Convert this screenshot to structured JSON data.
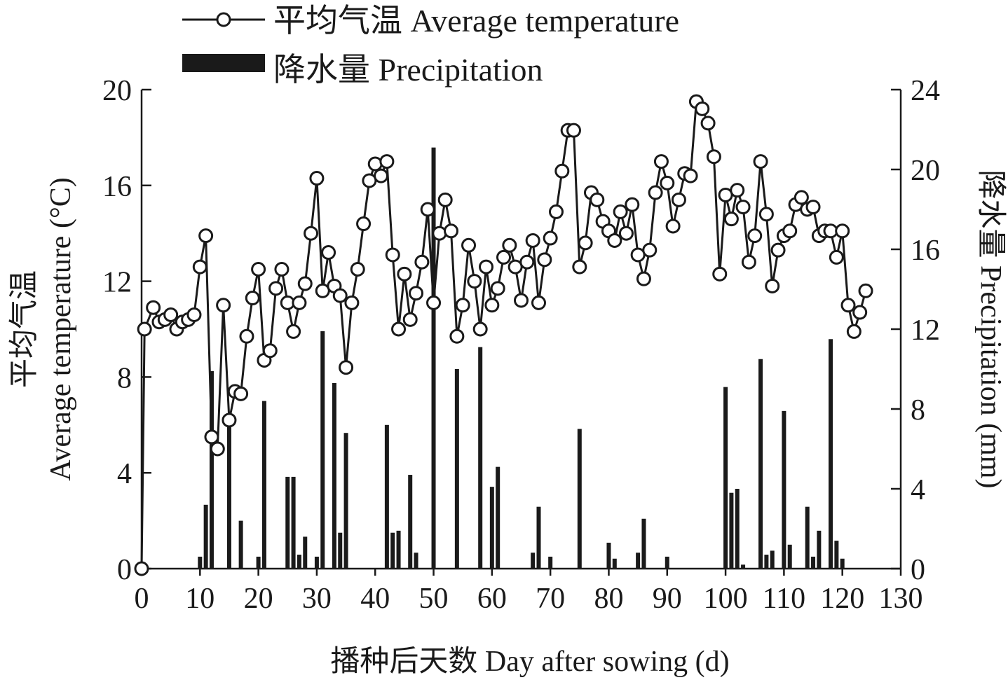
{
  "chart_data": {
    "type": "line+bar",
    "title": "",
    "legend": {
      "placement": "top-left",
      "items": [
        {
          "label": "平均气温 Average temperature",
          "marker": "line-circle"
        },
        {
          "label": "降水量 Precipitation",
          "marker": "bar"
        }
      ]
    },
    "xlabel": "播种后天数 Day after sowing (d)",
    "ylabel_left": "平均气温 Average temperature (°C)",
    "ylabel_left_line1": "平均气温",
    "ylabel_left_line2": "Average temperature (°C)",
    "ylabel_right": "降水量 Precipitation (mm)",
    "xlim": [
      0,
      130
    ],
    "ylim_left": [
      0,
      20
    ],
    "ylim_right": [
      0,
      24
    ],
    "x_ticks": [
      "0",
      "10",
      "20",
      "30",
      "40",
      "50",
      "60",
      "70",
      "80",
      "90",
      "100",
      "110",
      "120",
      "130"
    ],
    "y_left_ticks": [
      "0",
      "4",
      "8",
      "12",
      "16",
      "20"
    ],
    "y_right_ticks": [
      "0",
      "4",
      "8",
      "12",
      "16",
      "20",
      "24"
    ],
    "colors": {
      "line": "#1a1a1a",
      "bar": "#1a1a1a",
      "marker_fill": "#ffffff"
    },
    "grid": false,
    "series": [
      {
        "name": "平均气温 Average temperature",
        "axis": "left",
        "type": "line",
        "points": [
          [
            0,
            0
          ],
          [
            0.5,
            10.0
          ],
          [
            2,
            10.9
          ],
          [
            3,
            10.3
          ],
          [
            4,
            10.4
          ],
          [
            5,
            10.6
          ],
          [
            6,
            10.0
          ],
          [
            7,
            10.3
          ],
          [
            8,
            10.4
          ],
          [
            9,
            10.6
          ],
          [
            10,
            12.6
          ],
          [
            11,
            13.9
          ],
          [
            12,
            5.5
          ],
          [
            13,
            5.0
          ],
          [
            14,
            11.0
          ],
          [
            15,
            6.2
          ],
          [
            16,
            7.4
          ],
          [
            17,
            7.3
          ],
          [
            18,
            9.7
          ],
          [
            19,
            11.3
          ],
          [
            20,
            12.5
          ],
          [
            21,
            8.7
          ],
          [
            22,
            9.1
          ],
          [
            23,
            11.7
          ],
          [
            24,
            12.5
          ],
          [
            25,
            11.1
          ],
          [
            26,
            9.9
          ],
          [
            27,
            11.1
          ],
          [
            28,
            11.9
          ],
          [
            29,
            14.0
          ],
          [
            30,
            16.3
          ],
          [
            31,
            11.6
          ],
          [
            32,
            13.2
          ],
          [
            33,
            11.8
          ],
          [
            34,
            11.4
          ],
          [
            35,
            8.4
          ],
          [
            36,
            11.1
          ],
          [
            37,
            12.5
          ],
          [
            38,
            14.4
          ],
          [
            39,
            16.2
          ],
          [
            40,
            16.9
          ],
          [
            41,
            16.4
          ],
          [
            42,
            17.0
          ],
          [
            43,
            13.1
          ],
          [
            44,
            10.0
          ],
          [
            45,
            12.3
          ],
          [
            46,
            10.4
          ],
          [
            47,
            11.5
          ],
          [
            48,
            12.8
          ],
          [
            49,
            15.0
          ],
          [
            50,
            11.1
          ],
          [
            51,
            14.0
          ],
          [
            52,
            15.4
          ],
          [
            53,
            14.1
          ],
          [
            54,
            9.7
          ],
          [
            55,
            11.0
          ],
          [
            56,
            13.5
          ],
          [
            57,
            12.0
          ],
          [
            58,
            10.0
          ],
          [
            59,
            12.6
          ],
          [
            60,
            11.0
          ],
          [
            61,
            11.7
          ],
          [
            62,
            13.0
          ],
          [
            63,
            13.5
          ],
          [
            64,
            12.6
          ],
          [
            65,
            11.2
          ],
          [
            66,
            12.8
          ],
          [
            67,
            13.7
          ],
          [
            68,
            11.1
          ],
          [
            69,
            12.9
          ],
          [
            70,
            13.8
          ],
          [
            71,
            14.9
          ],
          [
            72,
            16.6
          ],
          [
            73,
            18.3
          ],
          [
            74,
            18.3
          ],
          [
            75,
            12.6
          ],
          [
            76,
            13.6
          ],
          [
            77,
            15.7
          ],
          [
            78,
            15.4
          ],
          [
            79,
            14.5
          ],
          [
            80,
            14.1
          ],
          [
            81,
            13.7
          ],
          [
            82,
            14.9
          ],
          [
            83,
            14.0
          ],
          [
            84,
            15.2
          ],
          [
            85,
            13.1
          ],
          [
            86,
            12.1
          ],
          [
            87,
            13.3
          ],
          [
            88,
            15.7
          ],
          [
            89,
            17.0
          ],
          [
            90,
            16.1
          ],
          [
            91,
            14.3
          ],
          [
            92,
            15.4
          ],
          [
            93,
            16.5
          ],
          [
            94,
            16.4
          ],
          [
            95,
            19.5
          ],
          [
            96,
            19.2
          ],
          [
            97,
            18.6
          ],
          [
            98,
            17.2
          ],
          [
            99,
            12.3
          ],
          [
            100,
            15.6
          ],
          [
            101,
            14.6
          ],
          [
            102,
            15.8
          ],
          [
            103,
            15.1
          ],
          [
            104,
            12.8
          ],
          [
            105,
            13.9
          ],
          [
            106,
            17.0
          ],
          [
            107,
            14.8
          ],
          [
            108,
            11.8
          ],
          [
            109,
            13.3
          ],
          [
            110,
            13.9
          ],
          [
            111,
            14.1
          ],
          [
            112,
            15.2
          ],
          [
            113,
            15.5
          ],
          [
            114,
            15.0
          ],
          [
            115,
            15.1
          ],
          [
            116,
            13.9
          ],
          [
            117,
            14.1
          ],
          [
            118,
            14.1
          ],
          [
            119,
            13.0
          ],
          [
            120,
            14.1
          ],
          [
            121,
            11.0
          ],
          [
            122,
            9.9
          ],
          [
            123,
            10.7
          ],
          [
            124,
            11.6
          ]
        ]
      },
      {
        "name": "降水量 Precipitation",
        "axis": "right",
        "type": "bar",
        "points": [
          [
            10,
            0.6
          ],
          [
            11,
            3.2
          ],
          [
            12,
            9.9
          ],
          [
            15,
            7.2
          ],
          [
            17,
            2.4
          ],
          [
            20,
            0.6
          ],
          [
            21,
            8.4
          ],
          [
            25,
            4.6
          ],
          [
            26,
            4.6
          ],
          [
            27,
            0.7
          ],
          [
            28,
            1.6
          ],
          [
            30,
            0.6
          ],
          [
            31,
            11.9
          ],
          [
            33,
            9.3
          ],
          [
            34,
            1.8
          ],
          [
            35,
            6.8
          ],
          [
            42,
            7.2
          ],
          [
            43,
            1.8
          ],
          [
            44,
            1.9
          ],
          [
            46,
            4.7
          ],
          [
            47,
            0.8
          ],
          [
            50,
            21.1
          ],
          [
            54,
            10.0
          ],
          [
            58,
            11.1
          ],
          [
            60,
            4.1
          ],
          [
            61,
            5.1
          ],
          [
            67,
            0.8
          ],
          [
            68,
            3.1
          ],
          [
            70,
            0.6
          ],
          [
            75,
            7.0
          ],
          [
            80,
            1.3
          ],
          [
            81,
            0.5
          ],
          [
            85,
            0.8
          ],
          [
            86,
            2.5
          ],
          [
            90,
            0.6
          ],
          [
            100,
            9.1
          ],
          [
            101,
            3.8
          ],
          [
            102,
            4.0
          ],
          [
            103,
            0.2
          ],
          [
            106,
            10.5
          ],
          [
            107,
            0.7
          ],
          [
            108,
            0.9
          ],
          [
            110,
            7.9
          ],
          [
            111,
            1.2
          ],
          [
            114,
            3.1
          ],
          [
            115,
            0.6
          ],
          [
            116,
            1.9
          ],
          [
            118,
            11.5
          ],
          [
            119,
            1.4
          ],
          [
            120,
            0.5
          ]
        ]
      }
    ]
  }
}
